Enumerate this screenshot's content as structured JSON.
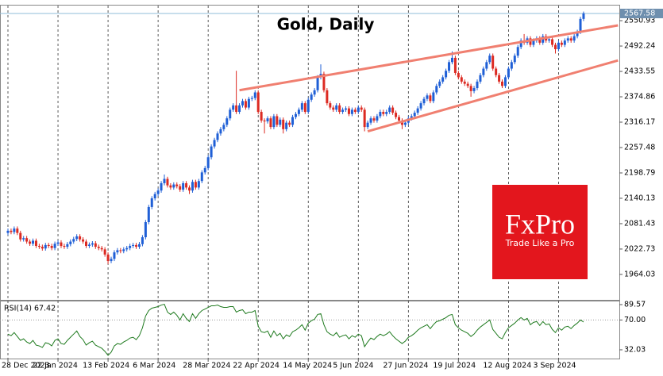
{
  "chart_data": {
    "type": "candlestick",
    "title": "Gold, Daily",
    "categories": [
      "28 Dec 2023",
      null,
      null,
      null,
      null,
      null,
      null,
      null,
      null,
      null,
      null,
      null,
      null,
      null,
      null,
      null,
      "22 Jan 2024",
      null,
      null,
      null,
      null,
      null,
      null,
      null,
      null,
      null,
      null,
      null,
      null,
      null,
      null,
      null,
      "13 Feb 2024",
      null,
      null,
      null,
      null,
      null,
      null,
      null,
      null,
      null,
      null,
      null,
      null,
      null,
      null,
      null,
      "6 Mar 2024",
      null,
      null,
      null,
      null,
      null,
      null,
      null,
      null,
      null,
      null,
      null,
      null,
      null,
      null,
      null,
      "28 Mar 2024",
      null,
      null,
      null,
      null,
      null,
      null,
      null,
      null,
      null,
      null,
      null,
      null,
      null,
      null,
      null,
      "22 Apr 2024",
      null,
      null,
      null,
      null,
      null,
      null,
      null,
      null,
      null,
      null,
      null,
      null,
      null,
      null,
      null,
      "14 May 2024",
      null,
      null,
      null,
      null,
      null,
      null,
      null,
      null,
      null,
      null,
      null,
      null,
      null,
      null,
      null,
      "5 Jun 2024",
      null,
      null,
      null,
      null,
      null,
      null,
      null,
      null,
      null,
      null,
      null,
      null,
      null,
      null,
      null,
      "27 Jun 2024",
      null,
      null,
      null,
      null,
      null,
      null,
      null,
      null,
      null,
      null,
      null,
      null,
      null,
      null,
      null,
      "19 Jul 2024",
      null,
      null,
      null,
      null,
      null,
      null,
      null,
      null,
      null,
      null,
      null,
      null,
      null,
      null,
      null,
      "12 Aug 2024",
      null,
      null,
      null,
      null,
      null,
      null,
      null,
      null,
      null,
      null,
      null,
      null,
      null,
      null,
      null,
      "3 Sep 2024",
      null,
      null,
      null,
      null,
      null,
      null,
      null,
      null
    ],
    "open": [
      2060,
      2065,
      2062,
      2070,
      2060,
      2045,
      2048,
      2040,
      2035,
      2042,
      2030,
      2028,
      2024,
      2032,
      2030,
      2025,
      2035,
      2038,
      2030,
      2028,
      2034,
      2040,
      2046,
      2052,
      2045,
      2040,
      2030,
      2033,
      2036,
      2028,
      2025,
      2022,
      2010,
      1995,
      2000,
      2015,
      2020,
      2018,
      2022,
      2025,
      2030,
      2032,
      2028,
      2034,
      2050,
      2085,
      2120,
      2140,
      2150,
      2158,
      2175,
      2185,
      2170,
      2165,
      2172,
      2168,
      2160,
      2175,
      2165,
      2158,
      2178,
      2165,
      2180,
      2200,
      2210,
      2235,
      2260,
      2275,
      2290,
      2300,
      2310,
      2325,
      2345,
      2355,
      2340,
      2355,
      2365,
      2350,
      2370,
      2372,
      2385,
      2340,
      2320,
      2318,
      2325,
      2305,
      2330,
      2310,
      2322,
      2300,
      2315,
      2310,
      2328,
      2335,
      2345,
      2360,
      2340,
      2368,
      2380,
      2390,
      2420,
      2428,
      2390,
      2360,
      2350,
      2345,
      2355,
      2340,
      2345,
      2348,
      2335,
      2345,
      2340,
      2350,
      2345,
      2305,
      2315,
      2325,
      2320,
      2330,
      2340,
      2335,
      2340,
      2350,
      2338,
      2328,
      2320,
      2310,
      2315,
      2325,
      2330,
      2338,
      2348,
      2360,
      2370,
      2378,
      2365,
      2385,
      2400,
      2410,
      2420,
      2435,
      2455,
      2465,
      2430,
      2420,
      2410,
      2405,
      2400,
      2388,
      2395,
      2410,
      2425,
      2440,
      2455,
      2470,
      2440,
      2425,
      2410,
      2400,
      2420,
      2440,
      2455,
      2470,
      2490,
      2505,
      2500,
      2510,
      2495,
      2505,
      2510,
      2500,
      2515,
      2505,
      2508,
      2495,
      2485,
      2500,
      2495,
      2505,
      2510,
      2505,
      2515,
      2525,
      2555
    ],
    "high": [
      2070,
      2070,
      2075,
      2075,
      2065,
      2053,
      2053,
      2045,
      2047,
      2047,
      2035,
      2033,
      2037,
      2037,
      2035,
      2040,
      2043,
      2043,
      2035,
      2039,
      2045,
      2051,
      2057,
      2057,
      2050,
      2045,
      2038,
      2041,
      2041,
      2033,
      2030,
      2027,
      2015,
      2005,
      2020,
      2025,
      2025,
      2027,
      2030,
      2035,
      2037,
      2037,
      2039,
      2055,
      2090,
      2125,
      2145,
      2155,
      2163,
      2180,
      2195,
      2190,
      2175,
      2177,
      2177,
      2173,
      2180,
      2180,
      2170,
      2183,
      2183,
      2185,
      2205,
      2215,
      2240,
      2265,
      2280,
      2295,
      2305,
      2315,
      2330,
      2350,
      2360,
      2435,
      2360,
      2370,
      2370,
      2375,
      2377,
      2390,
      2390,
      2345,
      2325,
      2330,
      2330,
      2335,
      2335,
      2327,
      2327,
      2320,
      2320,
      2333,
      2340,
      2350,
      2365,
      2365,
      2373,
      2385,
      2395,
      2425,
      2450,
      2433,
      2395,
      2365,
      2355,
      2360,
      2360,
      2350,
      2353,
      2353,
      2350,
      2350,
      2355,
      2355,
      2350,
      2320,
      2330,
      2330,
      2335,
      2345,
      2345,
      2345,
      2355,
      2355,
      2343,
      2333,
      2325,
      2320,
      2330,
      2335,
      2343,
      2353,
      2365,
      2375,
      2383,
      2383,
      2390,
      2405,
      2415,
      2425,
      2440,
      2460,
      2480,
      2470,
      2435,
      2425,
      2415,
      2410,
      2405,
      2400,
      2415,
      2430,
      2445,
      2460,
      2475,
      2475,
      2445,
      2430,
      2415,
      2425,
      2445,
      2460,
      2475,
      2495,
      2510,
      2520,
      2515,
      2515,
      2510,
      2515,
      2515,
      2520,
      2520,
      2513,
      2513,
      2500,
      2505,
      2505,
      2510,
      2515,
      2515,
      2520,
      2530,
      2560,
      2572
    ],
    "low": [
      2055,
      2057,
      2057,
      2055,
      2040,
      2040,
      2035,
      2030,
      2030,
      2025,
      2023,
      2019,
      2019,
      2025,
      2020,
      2020,
      2030,
      2025,
      2023,
      2023,
      2029,
      2035,
      2041,
      2040,
      2035,
      2025,
      2025,
      2028,
      2023,
      2020,
      2017,
      2005,
      1988,
      1990,
      1995,
      2010,
      2013,
      2013,
      2017,
      2020,
      2025,
      2023,
      2023,
      2029,
      2045,
      2080,
      2115,
      2135,
      2145,
      2153,
      2170,
      2165,
      2160,
      2160,
      2163,
      2155,
      2155,
      2160,
      2150,
      2153,
      2160,
      2160,
      2175,
      2195,
      2205,
      2230,
      2255,
      2270,
      2285,
      2295,
      2305,
      2320,
      2340,
      2335,
      2335,
      2350,
      2345,
      2345,
      2365,
      2367,
      2335,
      2315,
      2290,
      2313,
      2300,
      2300,
      2305,
      2305,
      2290,
      2295,
      2305,
      2305,
      2323,
      2330,
      2340,
      2335,
      2335,
      2363,
      2375,
      2385,
      2415,
      2385,
      2355,
      2345,
      2340,
      2340,
      2335,
      2335,
      2340,
      2330,
      2330,
      2335,
      2335,
      2340,
      2295,
      2300,
      2310,
      2315,
      2315,
      2325,
      2330,
      2330,
      2335,
      2333,
      2323,
      2315,
      2300,
      2305,
      2310,
      2320,
      2325,
      2333,
      2343,
      2355,
      2365,
      2360,
      2360,
      2380,
      2395,
      2405,
      2415,
      2430,
      2450,
      2425,
      2415,
      2405,
      2400,
      2395,
      2375,
      2383,
      2390,
      2405,
      2420,
      2435,
      2450,
      2435,
      2420,
      2405,
      2395,
      2395,
      2415,
      2435,
      2450,
      2465,
      2485,
      2495,
      2495,
      2490,
      2490,
      2500,
      2495,
      2495,
      2500,
      2500,
      2490,
      2475,
      2480,
      2490,
      2490,
      2500,
      2500,
      2500,
      2510,
      2520,
      2550
    ],
    "close": [
      2065,
      2062,
      2070,
      2060,
      2045,
      2048,
      2040,
      2035,
      2042,
      2030,
      2028,
      2024,
      2032,
      2030,
      2025,
      2035,
      2038,
      2030,
      2028,
      2034,
      2040,
      2046,
      2052,
      2045,
      2040,
      2030,
      2033,
      2036,
      2028,
      2025,
      2022,
      2010,
      1995,
      2000,
      2015,
      2020,
      2018,
      2022,
      2025,
      2030,
      2032,
      2028,
      2034,
      2050,
      2085,
      2120,
      2140,
      2150,
      2158,
      2175,
      2185,
      2170,
      2165,
      2172,
      2168,
      2160,
      2175,
      2165,
      2158,
      2178,
      2165,
      2180,
      2200,
      2210,
      2235,
      2260,
      2275,
      2290,
      2300,
      2310,
      2325,
      2345,
      2355,
      2340,
      2355,
      2365,
      2350,
      2370,
      2372,
      2385,
      2340,
      2320,
      2318,
      2325,
      2305,
      2330,
      2310,
      2322,
      2300,
      2315,
      2310,
      2328,
      2335,
      2345,
      2360,
      2340,
      2368,
      2380,
      2390,
      2420,
      2428,
      2390,
      2360,
      2350,
      2345,
      2355,
      2340,
      2345,
      2348,
      2335,
      2345,
      2340,
      2350,
      2345,
      2305,
      2315,
      2325,
      2320,
      2330,
      2340,
      2335,
      2340,
      2350,
      2338,
      2328,
      2320,
      2310,
      2315,
      2325,
      2330,
      2338,
      2348,
      2360,
      2370,
      2378,
      2365,
      2385,
      2400,
      2410,
      2420,
      2435,
      2455,
      2465,
      2430,
      2420,
      2410,
      2405,
      2400,
      2388,
      2395,
      2410,
      2425,
      2440,
      2455,
      2470,
      2440,
      2425,
      2410,
      2400,
      2420,
      2440,
      2455,
      2470,
      2490,
      2505,
      2500,
      2510,
      2495,
      2505,
      2510,
      2500,
      2515,
      2505,
      2508,
      2495,
      2485,
      2500,
      2495,
      2505,
      2510,
      2505,
      2515,
      2525,
      2555,
      2567.58
    ],
    "up_color": "#1f5fd6",
    "down_color": "#dc2a22",
    "ylim": [
      1905.2,
      2585.9
    ],
    "yticks": [
      1964.03,
      2022.73,
      2081.43,
      2140.13,
      2198.79,
      2257.48,
      2316.17,
      2374.86,
      2433.55,
      2492.24,
      2550.93
    ],
    "last_price": 2567.58,
    "last_price_color": "#6f8fae",
    "grid": true,
    "trendlines": [
      {
        "x": [
          74,
          195
        ],
        "y": [
          2390,
          2540
        ]
      },
      {
        "x": [
          115,
          195
        ],
        "y": [
          2295,
          2459
        ]
      }
    ],
    "trendline_color": "#f07f70",
    "rsi_label": "RSI(14) 67.42",
    "rsi_color": "#1e7a1e",
    "rsi": [
      52,
      50,
      54,
      49,
      44,
      46,
      42,
      40,
      44,
      38,
      37,
      35,
      41,
      40,
      37,
      44,
      46,
      40,
      39,
      44,
      48,
      52,
      56,
      49,
      45,
      38,
      41,
      43,
      38,
      36,
      34,
      30,
      25,
      29,
      37,
      40,
      39,
      42,
      44,
      47,
      48,
      45,
      50,
      60,
      75,
      82,
      85,
      86,
      87,
      89,
      90,
      80,
      77,
      80,
      76,
      70,
      78,
      72,
      68,
      78,
      72,
      78,
      82,
      84,
      86,
      88,
      88,
      89,
      87,
      86,
      86,
      87,
      87,
      80,
      82,
      83,
      78,
      80,
      80,
      82,
      62,
      55,
      54,
      56,
      48,
      56,
      50,
      53,
      46,
      51,
      49,
      55,
      57,
      60,
      64,
      57,
      66,
      69,
      71,
      77,
      78,
      64,
      55,
      52,
      50,
      54,
      48,
      50,
      51,
      46,
      50,
      48,
      52,
      50,
      36,
      42,
      47,
      45,
      49,
      52,
      50,
      52,
      55,
      50,
      46,
      43,
      40,
      43,
      48,
      50,
      53,
      57,
      60,
      62,
      64,
      59,
      64,
      68,
      69,
      71,
      73,
      76,
      77,
      64,
      60,
      57,
      55,
      53,
      49,
      52,
      57,
      61,
      64,
      67,
      70,
      58,
      53,
      48,
      46,
      54,
      60,
      63,
      66,
      70,
      73,
      70,
      72,
      64,
      67,
      68,
      63,
      68,
      64,
      65,
      58,
      54,
      60,
      57,
      61,
      62,
      59,
      63,
      66,
      70,
      67.42
    ],
    "rsi_ylim": [
      20.9,
      93.6
    ],
    "rsi_yticks": [
      89.57,
      {
        "value": 70,
        "label": "70.00"
      },
      32.03
    ],
    "rsi_levels": [
      70
    ],
    "logo": {
      "name": "FxPro",
      "tagline": "Trade Like a Pro",
      "color": "#e3161d"
    }
  }
}
